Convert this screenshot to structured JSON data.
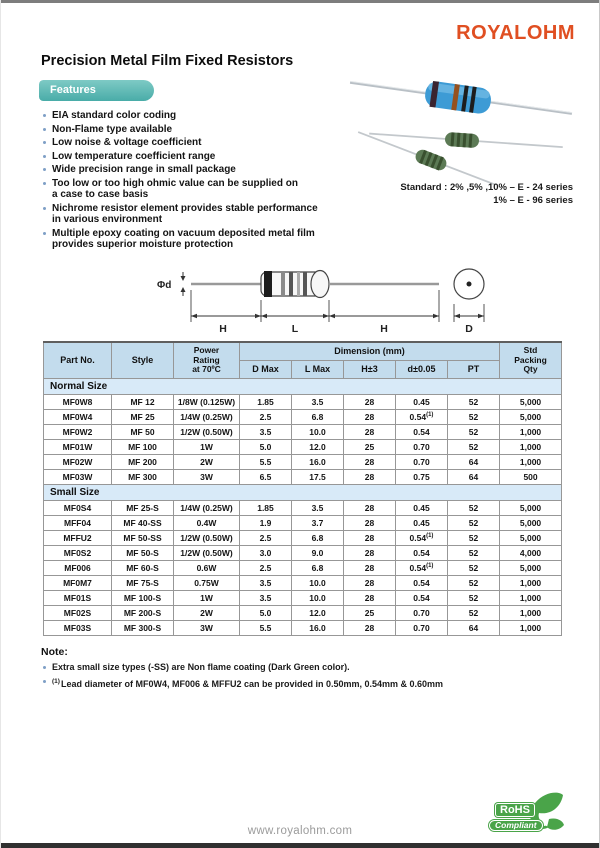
{
  "brand": {
    "logo_text": "ROYALOHM",
    "logo_color": "#e04f22",
    "accent_teal": "#55b4b0",
    "table_header_blue": "#c3dced",
    "section_band_blue": "#d8eaf8",
    "rohs_green": "#4aa449"
  },
  "header": {
    "title": "Precision Metal Film Fixed Resistors"
  },
  "features": {
    "label": "Features",
    "items": [
      "EIA standard color coding",
      "Non-Flame type available",
      "Low noise & voltage coefficient",
      "Low temperature coefficient range",
      "Wide precision range in small package",
      "Too low or too high ohmic value can be supplied on\na case to case basis",
      "Nichrome resistor element  provides stable performance\nin various environment",
      "Multiple epoxy coating on vacuum deposited metal film\nprovides superior moisture protection"
    ]
  },
  "standard": {
    "text": "Standard : 2%  ,5%  ,10% – E - 24 series\n1% – E - 96 series"
  },
  "diagram": {
    "phi_d_label": "Φd",
    "h_left_label": "H",
    "l_label": "L",
    "h_right_label": "H",
    "d_label": "D"
  },
  "table": {
    "dimension_group_header": "Dimension (mm)",
    "headers": {
      "part": "Part No.",
      "style": "Style",
      "power": "Power\nRating\nat 70ºC",
      "d_max": "D Max",
      "l_max": "L Max",
      "h": "H±3",
      "d": "d±0.05",
      "pt": "PT",
      "qty": "Std\nPacking\nQty"
    },
    "sections": [
      {
        "name": "Normal Size",
        "rows": [
          {
            "part": "MF0W8",
            "style": "MF 12",
            "power": "1/8W (0.125W)",
            "d_max": "1.85",
            "l_max": "3.5",
            "h": "28",
            "d": "0.45",
            "pt": "52",
            "qty": "5,000"
          },
          {
            "part": "MF0W4",
            "style": "MF 25",
            "power": "1/4W (0.25W)",
            "d_max": "2.5",
            "l_max": "6.8",
            "h": "28",
            "d": "0.54",
            "d_note": "(1)",
            "pt": "52",
            "qty": "5,000"
          },
          {
            "part": "MF0W2",
            "style": "MF 50",
            "power": "1/2W (0.50W)",
            "d_max": "3.5",
            "l_max": "10.0",
            "h": "28",
            "d": "0.54",
            "pt": "52",
            "qty": "1,000"
          },
          {
            "part": "MF01W",
            "style": "MF 100",
            "power": "1W",
            "d_max": "5.0",
            "l_max": "12.0",
            "h": "25",
            "d": "0.70",
            "pt": "52",
            "qty": "1,000"
          },
          {
            "part": "MF02W",
            "style": "MF 200",
            "power": "2W",
            "d_max": "5.5",
            "l_max": "16.0",
            "h": "28",
            "d": "0.70",
            "pt": "64",
            "qty": "1,000"
          },
          {
            "part": "MF03W",
            "style": "MF 300",
            "power": "3W",
            "d_max": "6.5",
            "l_max": "17.5",
            "h": "28",
            "d": "0.75",
            "pt": "64",
            "qty": "500"
          }
        ]
      },
      {
        "name": "Small Size",
        "rows": [
          {
            "part": "MF0S4",
            "style": "MF 25-S",
            "power": "1/4W (0.25W)",
            "d_max": "1.85",
            "l_max": "3.5",
            "h": "28",
            "d": "0.45",
            "pt": "52",
            "qty": "5,000"
          },
          {
            "part": "MFF04",
            "style": "MF 40-SS",
            "power": "0.4W",
            "d_max": "1.9",
            "l_max": "3.7",
            "h": "28",
            "d": "0.45",
            "pt": "52",
            "qty": "5,000"
          },
          {
            "part": "MFFU2",
            "style": "MF 50-SS",
            "power": "1/2W (0.50W)",
            "d_max": "2.5",
            "l_max": "6.8",
            "h": "28",
            "d": "0.54",
            "d_note": "(1)",
            "pt": "52",
            "qty": "5,000"
          },
          {
            "part": "MF0S2",
            "style": "MF 50-S",
            "power": "1/2W (0.50W)",
            "d_max": "3.0",
            "l_max": "9.0",
            "h": "28",
            "d": "0.54",
            "pt": "52",
            "qty": "4,000"
          },
          {
            "part": "MF006",
            "style": "MF 60-S",
            "power": "0.6W",
            "d_max": "2.5",
            "l_max": "6.8",
            "h": "28",
            "d": "0.54",
            "d_note": "(1)",
            "pt": "52",
            "qty": "5,000"
          },
          {
            "part": "MF0M7",
            "style": "MF 75-S",
            "power": "0.75W",
            "d_max": "3.5",
            "l_max": "10.0",
            "h": "28",
            "d": "0.54",
            "pt": "52",
            "qty": "1,000"
          },
          {
            "part": "MF01S",
            "style": "MF 100-S",
            "power": "1W",
            "d_max": "3.5",
            "l_max": "10.0",
            "h": "28",
            "d": "0.54",
            "pt": "52",
            "qty": "1,000"
          },
          {
            "part": "MF02S",
            "style": "MF 200-S",
            "power": "2W",
            "d_max": "5.0",
            "l_max": "12.0",
            "h": "25",
            "d": "0.70",
            "pt": "52",
            "qty": "1,000"
          },
          {
            "part": "MF03S",
            "style": "MF 300-S",
            "power": "3W",
            "d_max": "5.5",
            "l_max": "16.0",
            "h": "28",
            "d": "0.70",
            "pt": "64",
            "qty": "1,000"
          }
        ]
      }
    ]
  },
  "note": {
    "label": "Note:",
    "items": [
      {
        "sup": "",
        "text": "Extra small size types (-SS) are Non flame coating (Dark Green color)."
      },
      {
        "sup": "(1)",
        "text": "Lead diameter of MF0W4, MF006 & MFFU2 can be provided in 0.50mm, 0.54mm & 0.60mm"
      }
    ]
  },
  "footer": {
    "url": "www.royalohm.com",
    "rohs": {
      "line1": "RoHS",
      "line2": "Compliant"
    }
  }
}
